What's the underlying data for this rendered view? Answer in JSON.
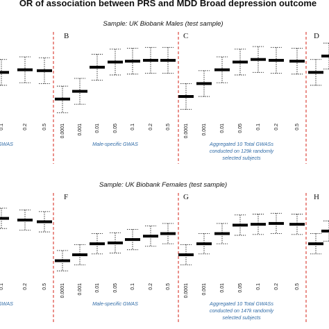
{
  "title": "OR of association between PRS and MDD Broad depression outcome",
  "chart_data": [
    {
      "type": "scatter",
      "sample_label": "Sample: UK Biobank Males (test sample)",
      "panels": [
        {
          "letter": "",
          "group_label": [
            "GWAS"
          ],
          "thresholds": [
            "0.1",
            "0.2",
            "0.5"
          ],
          "point_estimates": [
            1.043,
            1.046,
            1.045
          ],
          "ci_low": [
            1.028,
            1.031,
            1.03
          ],
          "ci_high": [
            1.058,
            1.061,
            1.06
          ]
        },
        {
          "letter": "B",
          "group_label": [
            "Male-specific GWAS"
          ],
          "thresholds": [
            "0.0001",
            "0.001",
            "0.01",
            "0.05",
            "0.1",
            "0.2",
            "0.5"
          ],
          "point_estimates": [
            1.012,
            1.021,
            1.049,
            1.055,
            1.056,
            1.057,
            1.057
          ],
          "ci_low": [
            0.996,
            1.006,
            1.034,
            1.04,
            1.041,
            1.042,
            1.042
          ],
          "ci_high": [
            1.027,
            1.036,
            1.064,
            1.07,
            1.071,
            1.072,
            1.072
          ]
        },
        {
          "letter": "C",
          "group_label": [
            "Aggregated 10 Total GWASs",
            "conducted on 129k randomly",
            "selected subjects"
          ],
          "thresholds": [
            "0.0001",
            "0.001",
            "0.01",
            "0.05",
            "0.1",
            "0.2",
            "0.5"
          ],
          "point_estimates": [
            1.015,
            1.03,
            1.046,
            1.055,
            1.058,
            1.057,
            1.056
          ],
          "ci_low": [
            1.0,
            1.015,
            1.031,
            1.04,
            1.043,
            1.042,
            1.041
          ],
          "ci_high": [
            1.03,
            1.045,
            1.061,
            1.07,
            1.073,
            1.072,
            1.071
          ]
        },
        {
          "letter": "D",
          "group_label": [],
          "thresholds": [],
          "point_estimates": [
            1.043,
            1.062
          ],
          "ci_low": [
            1.028,
            1.047
          ],
          "ci_high": [
            1.058,
            1.077
          ]
        }
      ]
    },
    {
      "type": "scatter",
      "sample_label": "Sample: UK Biobank Females (test sample)",
      "panels": [
        {
          "letter": "",
          "group_label": [
            "GWAS"
          ],
          "thresholds": [
            "0.1",
            "0.2",
            "0.5"
          ],
          "point_estimates": [
            1.07,
            1.068,
            1.066
          ],
          "ci_low": [
            1.058,
            1.056,
            1.054
          ],
          "ci_high": [
            1.082,
            1.08,
            1.078
          ]
        },
        {
          "letter": "F",
          "group_label": [
            "Male-specific GWAS"
          ],
          "thresholds": [
            "0.0001",
            "0.001",
            "0.01",
            "0.05",
            "0.1",
            "0.2",
            "0.5"
          ],
          "point_estimates": [
            1.02,
            1.027,
            1.04,
            1.041,
            1.045,
            1.049,
            1.052
          ],
          "ci_low": [
            1.008,
            1.015,
            1.028,
            1.029,
            1.033,
            1.037,
            1.04
          ],
          "ci_high": [
            1.032,
            1.039,
            1.052,
            1.053,
            1.057,
            1.061,
            1.064
          ]
        },
        {
          "letter": "G",
          "group_label": [
            "Aggregated 10 Total GWASs",
            "conducted on 147k randomly",
            "selected subjects"
          ],
          "thresholds": [
            "0.0001",
            "0.001",
            "0.01",
            "0.05",
            "0.1",
            "0.2",
            "0.5"
          ],
          "point_estimates": [
            1.027,
            1.04,
            1.052,
            1.062,
            1.063,
            1.064,
            1.063
          ],
          "ci_low": [
            1.015,
            1.028,
            1.04,
            1.05,
            1.051,
            1.052,
            1.051
          ],
          "ci_high": [
            1.039,
            1.052,
            1.064,
            1.074,
            1.075,
            1.076,
            1.075
          ]
        },
        {
          "letter": "H",
          "group_label": [],
          "thresholds": [],
          "point_estimates": [
            1.04,
            1.055
          ],
          "ci_low": [
            1.028,
            1.043
          ],
          "ci_high": [
            1.052,
            1.067
          ]
        }
      ]
    }
  ]
}
